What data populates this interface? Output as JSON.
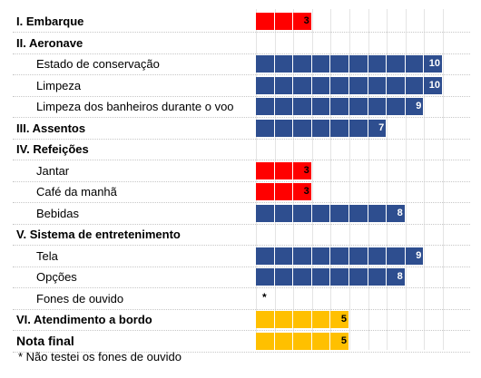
{
  "colors": {
    "red": "#ff0000",
    "blue": "#2e4e8f",
    "yellow": "#ffc000",
    "label_dark": "#000000",
    "label_light": "#ffffff"
  },
  "chart_data": {
    "type": "bar",
    "orientation": "horizontal",
    "xlim": [
      0,
      10
    ],
    "rows": [
      {
        "label": "I. Embarque",
        "level": 0,
        "value": 3,
        "color": "red"
      },
      {
        "label": "II. Aeronave",
        "level": 0,
        "value": null,
        "color": null
      },
      {
        "label": "Estado de conservação",
        "level": 1,
        "value": 10,
        "color": "blue"
      },
      {
        "label": "Limpeza",
        "level": 1,
        "value": 10,
        "color": "blue"
      },
      {
        "label": "Limpeza dos banheiros durante o voo",
        "level": 1,
        "value": 9,
        "color": "blue"
      },
      {
        "label": "III. Assentos",
        "level": 0,
        "value": 7,
        "color": "blue"
      },
      {
        "label": "IV. Refeições",
        "level": 0,
        "value": null,
        "color": null
      },
      {
        "label": "Jantar",
        "level": 1,
        "value": 3,
        "color": "red"
      },
      {
        "label": "Café da manhã",
        "level": 1,
        "value": 3,
        "color": "red"
      },
      {
        "label": "Bebidas",
        "level": 1,
        "value": 8,
        "color": "blue"
      },
      {
        "label": "V. Sistema de entretenimento",
        "level": 0,
        "value": null,
        "color": null
      },
      {
        "label": "Tela",
        "level": 1,
        "value": 9,
        "color": "blue"
      },
      {
        "label": "Opções",
        "level": 1,
        "value": 8,
        "color": "blue"
      },
      {
        "label": "Fones de ouvido",
        "level": 1,
        "value": null,
        "color": null,
        "mark": "*"
      },
      {
        "label": "VI. Atendimento a bordo",
        "level": 0,
        "value": 5,
        "color": "yellow"
      },
      {
        "label": "Nota final",
        "level": "final",
        "value": 5,
        "color": "yellow"
      }
    ],
    "footnote": "* Não testei os fones de ouvido"
  }
}
